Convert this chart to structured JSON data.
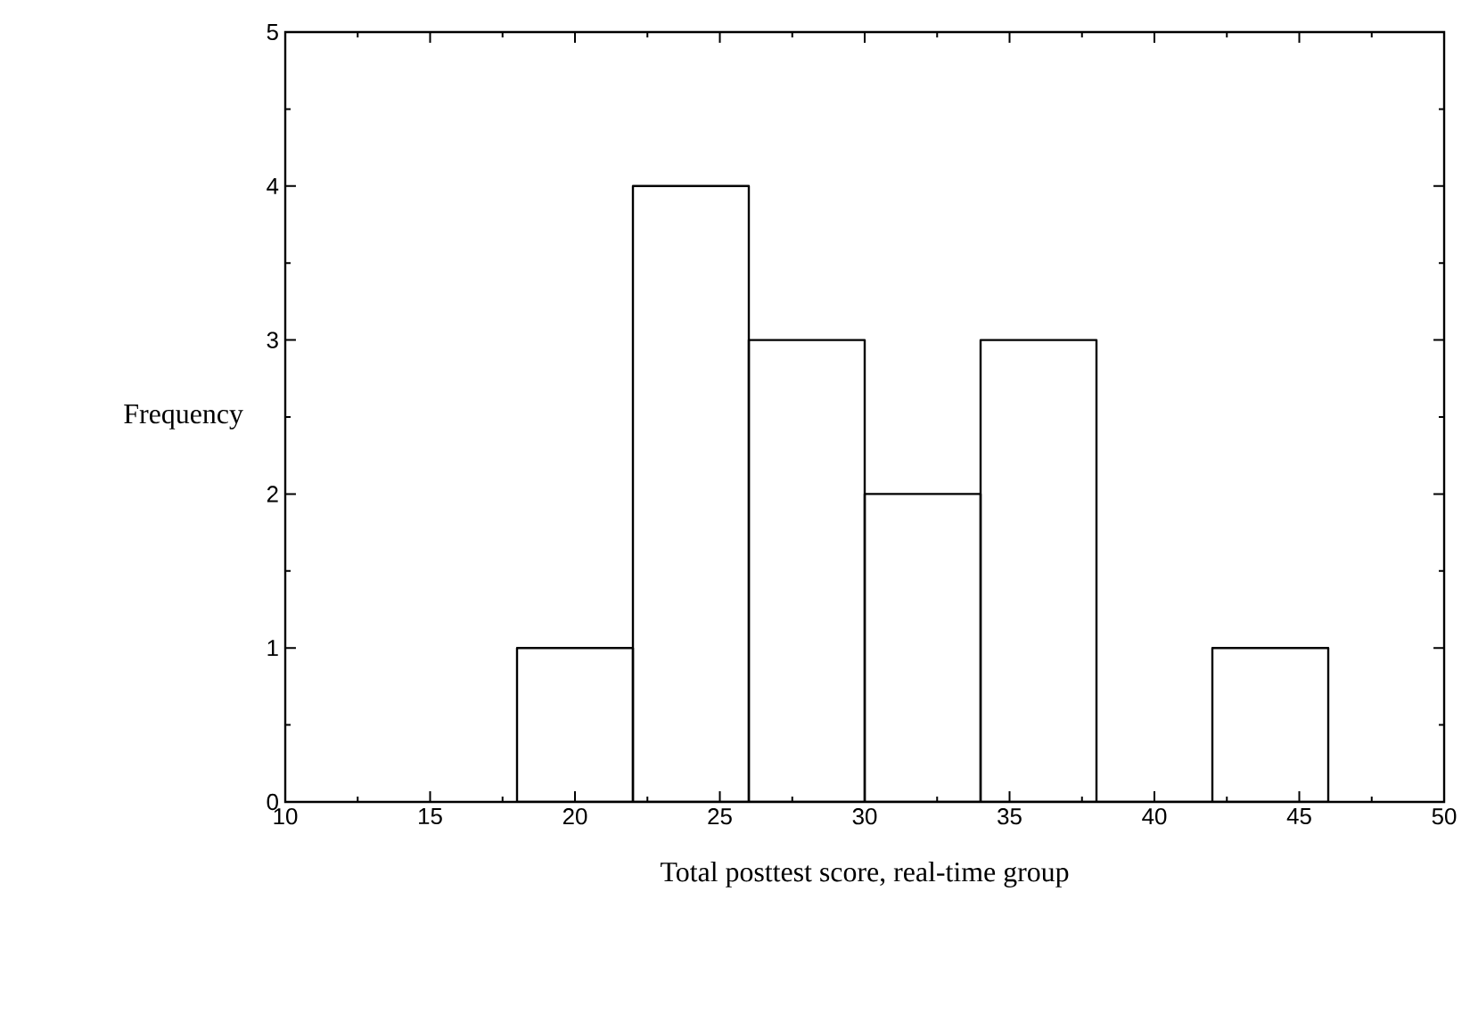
{
  "chart_data": {
    "type": "histogram",
    "xlabel": "Total posttest score, real-time group",
    "ylabel": "Frequency",
    "bins": [
      18,
      22,
      26,
      30,
      34,
      38,
      42,
      46
    ],
    "values": [
      1,
      4,
      3,
      2,
      3,
      0,
      1
    ],
    "xlim": [
      10,
      50
    ],
    "ylim": [
      0,
      5
    ],
    "xticks": [
      10,
      15,
      20,
      25,
      30,
      35,
      40,
      45,
      50
    ],
    "yticks": [
      0,
      1,
      2,
      3,
      4,
      5
    ]
  }
}
